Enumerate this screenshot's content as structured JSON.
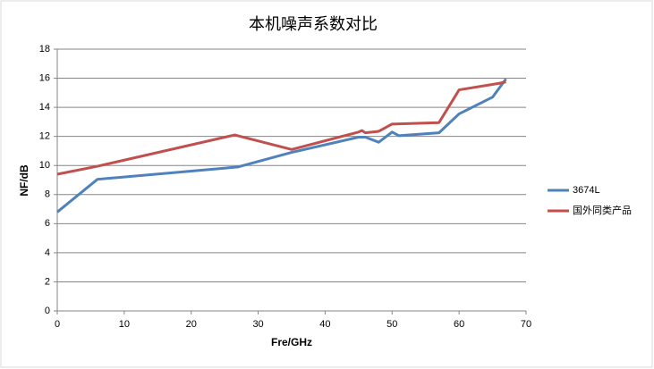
{
  "chart_data": {
    "type": "line",
    "title": "本机噪声系数对比",
    "x_label": "Fre/GHz",
    "y_label": "NF/dB",
    "xlim": [
      0,
      70
    ],
    "xticks": [
      0,
      10,
      20,
      30,
      40,
      50,
      60,
      70
    ],
    "ylim": [
      0,
      18
    ],
    "yticks": [
      0,
      2,
      4,
      6,
      8,
      10,
      12,
      14,
      16,
      18
    ],
    "grid": true,
    "legend": "right",
    "series": [
      {
        "name": "3674L",
        "color": "#4f81bd",
        "x": [
          0,
          6,
          27,
          35,
          45,
          46,
          48,
          50,
          51,
          57,
          60,
          65,
          67
        ],
        "values": [
          6.8,
          9.05,
          9.9,
          10.9,
          11.95,
          11.95,
          11.6,
          12.3,
          12.05,
          12.25,
          13.55,
          14.7,
          15.95
        ]
      },
      {
        "name": "国外同类产品",
        "color": "#c0504d",
        "x": [
          0,
          6,
          26.5,
          35,
          45,
          45.5,
          46,
          48,
          50,
          57,
          60,
          66,
          67
        ],
        "values": [
          9.4,
          9.95,
          12.1,
          11.1,
          12.3,
          12.4,
          12.25,
          12.35,
          12.85,
          12.95,
          15.2,
          15.65,
          15.75
        ]
      }
    ]
  }
}
